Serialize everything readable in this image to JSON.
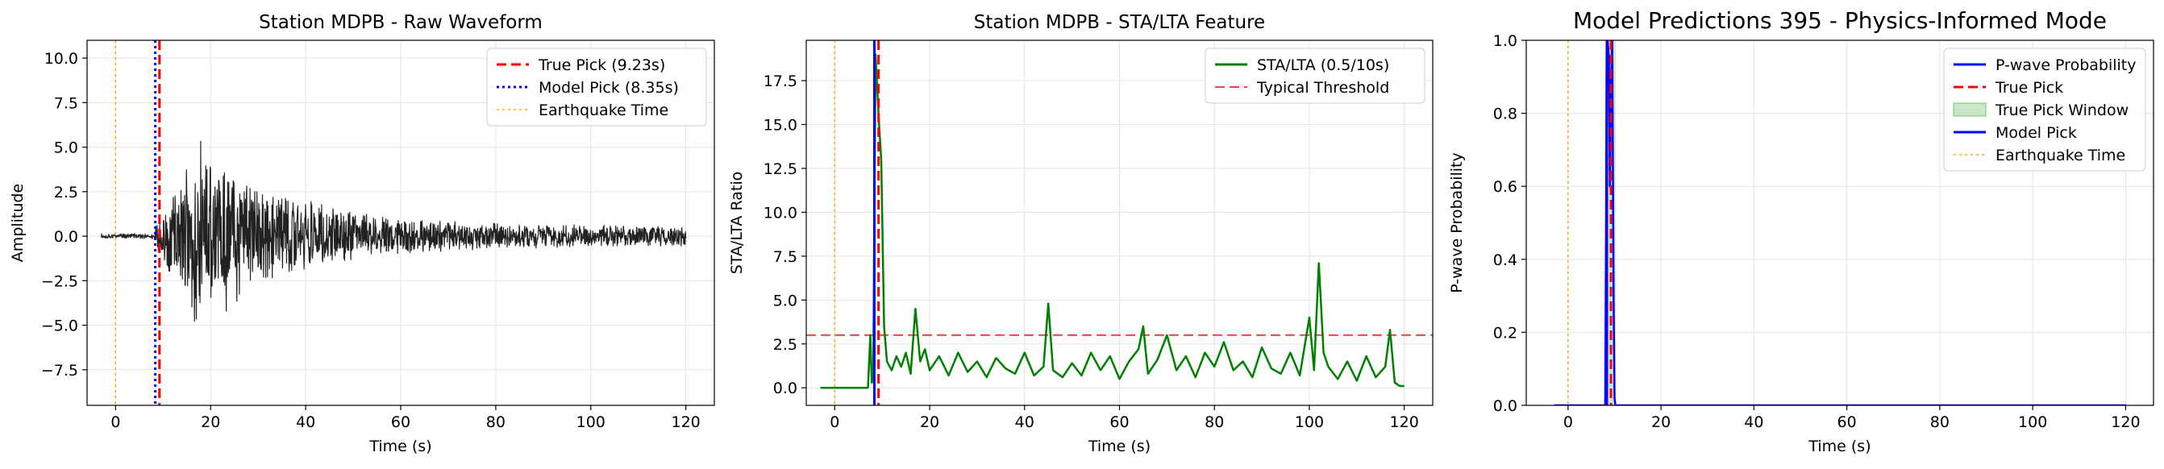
{
  "figure": {
    "panels": [
      "panel1",
      "panel2",
      "panel3"
    ]
  },
  "chart_data": [
    {
      "id": "panel1",
      "type": "line",
      "title": "Station MDPB - Raw Waveform",
      "xlabel": "Time (s)",
      "ylabel": "Amplitude",
      "xlim": [
        -6,
        126
      ],
      "ylim": [
        -9.5,
        11.0
      ],
      "xticks": [
        0,
        20,
        40,
        60,
        80,
        100,
        120
      ],
      "xtick_labels": [
        "0",
        "20",
        "40",
        "60",
        "80",
        "100",
        "120"
      ],
      "yticks": [
        -7.5,
        -5.0,
        -2.5,
        0.0,
        2.5,
        5.0,
        7.5,
        10.0
      ],
      "ytick_labels": [
        "−7.5",
        "−5.0",
        "−2.5",
        "0.0",
        "2.5",
        "5.0",
        "7.5",
        "10.0"
      ],
      "grid": true,
      "legend_position": "top-right",
      "series": [
        {
          "name": "",
          "kind": "waveform",
          "color": "#222222",
          "x_range": [
            -3,
            120
          ],
          "onset": 8.35,
          "noise_amp": 0.15,
          "peak_amp": 5.5,
          "peak_time": 18,
          "coda_amp": 0.6,
          "decay": 18
        }
      ],
      "vlines": [
        {
          "name": "True Pick (9.23s)",
          "x": 9.23,
          "color": "#ff0000",
          "style": "dashed",
          "width": 3
        },
        {
          "name": "Model Pick (8.35s)",
          "x": 8.35,
          "color": "#0000ff",
          "style": "dotted",
          "width": 3
        },
        {
          "name": "Earthquake Time",
          "x": 0,
          "color": "#ffa500",
          "style": "dotted",
          "width": 1.5
        }
      ],
      "hlines": [],
      "legend": [
        "True Pick (9.23s)",
        "Model Pick (8.35s)",
        "Earthquake Time"
      ]
    },
    {
      "id": "panel2",
      "type": "line",
      "title": "Station MDPB - STA/LTA Feature",
      "xlabel": "Time (s)",
      "ylabel": "STA/LTA Ratio",
      "xlim": [
        -6,
        126
      ],
      "ylim": [
        -1.0,
        19.8
      ],
      "xticks": [
        0,
        20,
        40,
        60,
        80,
        100,
        120
      ],
      "xtick_labels": [
        "0",
        "20",
        "40",
        "60",
        "80",
        "100",
        "120"
      ],
      "yticks": [
        0.0,
        2.5,
        5.0,
        7.5,
        10.0,
        12.5,
        15.0,
        17.5
      ],
      "ytick_labels": [
        "0.0",
        "2.5",
        "5.0",
        "7.5",
        "10.0",
        "12.5",
        "15.0",
        "17.5"
      ],
      "grid": true,
      "legend_position": "top-right",
      "series": [
        {
          "name": "STA/LTA (0.5/10s)",
          "kind": "points",
          "color": "#008000",
          "x": [
            -3,
            7,
            7.5,
            7.8,
            8.1,
            8.6,
            9.3,
            9.8,
            10.4,
            11,
            12,
            13,
            14,
            15,
            16,
            17,
            18,
            19,
            20,
            22,
            24,
            26,
            28,
            30,
            32,
            34,
            36,
            38,
            40,
            42,
            44,
            45,
            46,
            48,
            50,
            52,
            54,
            56,
            58,
            60,
            62,
            64,
            65,
            66,
            68,
            70,
            72,
            74,
            76,
            78,
            80,
            82,
            84,
            86,
            88,
            90,
            92,
            94,
            96,
            98,
            100,
            101,
            102,
            103,
            104,
            106,
            108,
            110,
            112,
            114,
            116,
            117,
            118,
            119,
            120
          ],
          "y": [
            0,
            0,
            3.0,
            0.3,
            0.4,
            19.0,
            15.2,
            13.0,
            3.5,
            1.5,
            1.0,
            1.8,
            1.2,
            2.0,
            0.8,
            4.5,
            1.5,
            2.2,
            1.0,
            1.8,
            0.7,
            2.0,
            0.9,
            1.5,
            0.6,
            1.7,
            1.1,
            0.8,
            2.0,
            0.7,
            1.2,
            4.8,
            1.0,
            0.6,
            1.4,
            0.7,
            2.0,
            1.0,
            1.8,
            0.5,
            1.5,
            2.2,
            3.5,
            0.8,
            1.6,
            3.0,
            1.0,
            1.8,
            0.6,
            2.0,
            1.2,
            2.6,
            1.0,
            1.5,
            0.6,
            2.3,
            1.1,
            0.8,
            2.0,
            0.7,
            4.0,
            1.0,
            7.1,
            2.0,
            1.2,
            0.5,
            1.5,
            0.4,
            1.8,
            0.6,
            1.2,
            3.3,
            0.3,
            0.1,
            0.1
          ]
        }
      ],
      "vlines": [
        {
          "name": "",
          "x": 9.23,
          "color": "#ff0000",
          "style": "dashed",
          "width": 3
        },
        {
          "name": "",
          "x": 8.35,
          "color": "#0000ff",
          "style": "solid",
          "width": 3
        },
        {
          "name": "",
          "x": 0,
          "color": "#ffa500",
          "style": "dotted",
          "width": 1.5
        }
      ],
      "hlines": [
        {
          "name": "Typical Threshold",
          "y": 3.0,
          "color": "#ff0000",
          "style": "dashed",
          "width": 2,
          "opacity": 0.75
        }
      ],
      "legend": [
        "STA/LTA (0.5/10s)",
        "Typical Threshold"
      ]
    },
    {
      "id": "panel3",
      "type": "line",
      "title": "Model Predictions 395 - Physics-Informed Mode",
      "xlabel": "Time (s)",
      "ylabel": "P-wave Probability",
      "xlim": [
        -9,
        126
      ],
      "ylim": [
        0,
        1.0
      ],
      "xticks": [
        0,
        20,
        40,
        60,
        80,
        100,
        120
      ],
      "xtick_labels": [
        "0",
        "20",
        "40",
        "60",
        "80",
        "100",
        "120"
      ],
      "yticks": [
        0.0,
        0.2,
        0.4,
        0.6,
        0.8,
        1.0
      ],
      "ytick_labels": [
        "0.0",
        "0.2",
        "0.4",
        "0.6",
        "0.8",
        "1.0"
      ],
      "grid": true,
      "legend_position": "top-right",
      "series": [
        {
          "name": "P-wave Probability",
          "kind": "points",
          "color": "#0000ff",
          "x": [
            -3,
            8.0,
            8.2,
            8.3,
            8.35,
            8.5,
            8.8,
            9.0,
            9.3,
            9.5,
            9.8,
            10.0,
            10.2,
            120
          ],
          "y": [
            0,
            0,
            0.55,
            0.98,
            1.0,
            1.0,
            0.95,
            0.6,
            0.9,
            1.0,
            0.3,
            0.02,
            0,
            0
          ]
        }
      ],
      "vlines": [
        {
          "name": "True Pick",
          "x": 9.23,
          "color": "#ff0000",
          "style": "dashed",
          "width": 3
        },
        {
          "name": "Model Pick",
          "x": 8.35,
          "color": "#0000ff",
          "style": "solid",
          "width": 3
        },
        {
          "name": "Earthquake Time",
          "x": 0,
          "color": "#ffa500",
          "style": "dotted",
          "width": 1.5
        }
      ],
      "hlines": [],
      "bands": [
        {
          "name": "True Pick Window",
          "x0": 8.23,
          "x1": 10.23,
          "color": "#2ca02c",
          "opacity": 0.25
        }
      ],
      "legend": [
        "P-wave Probability",
        "True Pick",
        "True Pick Window",
        "Model Pick",
        "Earthquake Time"
      ]
    }
  ]
}
